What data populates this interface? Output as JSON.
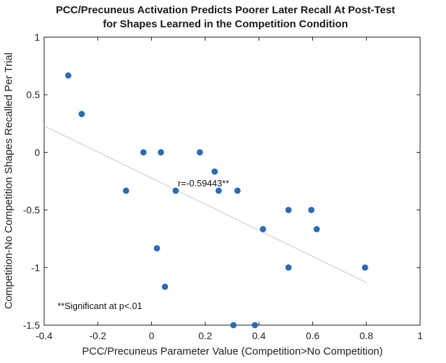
{
  "chart_data": {
    "type": "scatter",
    "title_line1": "PCC/Precuneus Activation Predicts Poorer Later Recall At Post-Test",
    "title_line2": "for Shapes Learned in the Competition Condition",
    "xlabel": "PCC/Precuneus Parameter Value (Competition>No Competition)",
    "ylabel": "Competition-No Competition Shapes Recalled Per Trial",
    "xlim": [
      -0.4,
      1
    ],
    "ylim": [
      -1.5,
      1
    ],
    "xticks": [
      "-0.4",
      "-0.2",
      "0",
      "0.2",
      "0.4",
      "0.6",
      "0.8",
      "1"
    ],
    "yticks": [
      "-1.5",
      "-1",
      "-0.5",
      "0",
      "0.5",
      "1"
    ],
    "points": [
      {
        "x": -0.31,
        "y": 0.667
      },
      {
        "x": -0.26,
        "y": 0.333
      },
      {
        "x": -0.095,
        "y": -0.333
      },
      {
        "x": -0.03,
        "y": 0.0
      },
      {
        "x": 0.035,
        "y": 0.0
      },
      {
        "x": 0.02,
        "y": -0.833
      },
      {
        "x": 0.05,
        "y": -1.167
      },
      {
        "x": 0.09,
        "y": -0.333
      },
      {
        "x": 0.18,
        "y": 0.0
      },
      {
        "x": 0.235,
        "y": -0.167
      },
      {
        "x": 0.25,
        "y": -0.333
      },
      {
        "x": 0.32,
        "y": -0.333
      },
      {
        "x": 0.305,
        "y": -1.5
      },
      {
        "x": 0.385,
        "y": -1.5
      },
      {
        "x": 0.415,
        "y": -0.667
      },
      {
        "x": 0.51,
        "y": -0.5
      },
      {
        "x": 0.51,
        "y": -1.0
      },
      {
        "x": 0.595,
        "y": -0.5
      },
      {
        "x": 0.615,
        "y": -0.667
      },
      {
        "x": 0.795,
        "y": -1.0
      }
    ],
    "fit_line": {
      "x1": -0.4,
      "y1": 0.23,
      "x2": 0.8,
      "y2": -1.13
    },
    "correlation_label": "r=-0.59443**",
    "significance_note": "**Significant at p<.01",
    "grid": false,
    "point_color": "#2a6db3",
    "fit_color": "#c8c8c8"
  }
}
